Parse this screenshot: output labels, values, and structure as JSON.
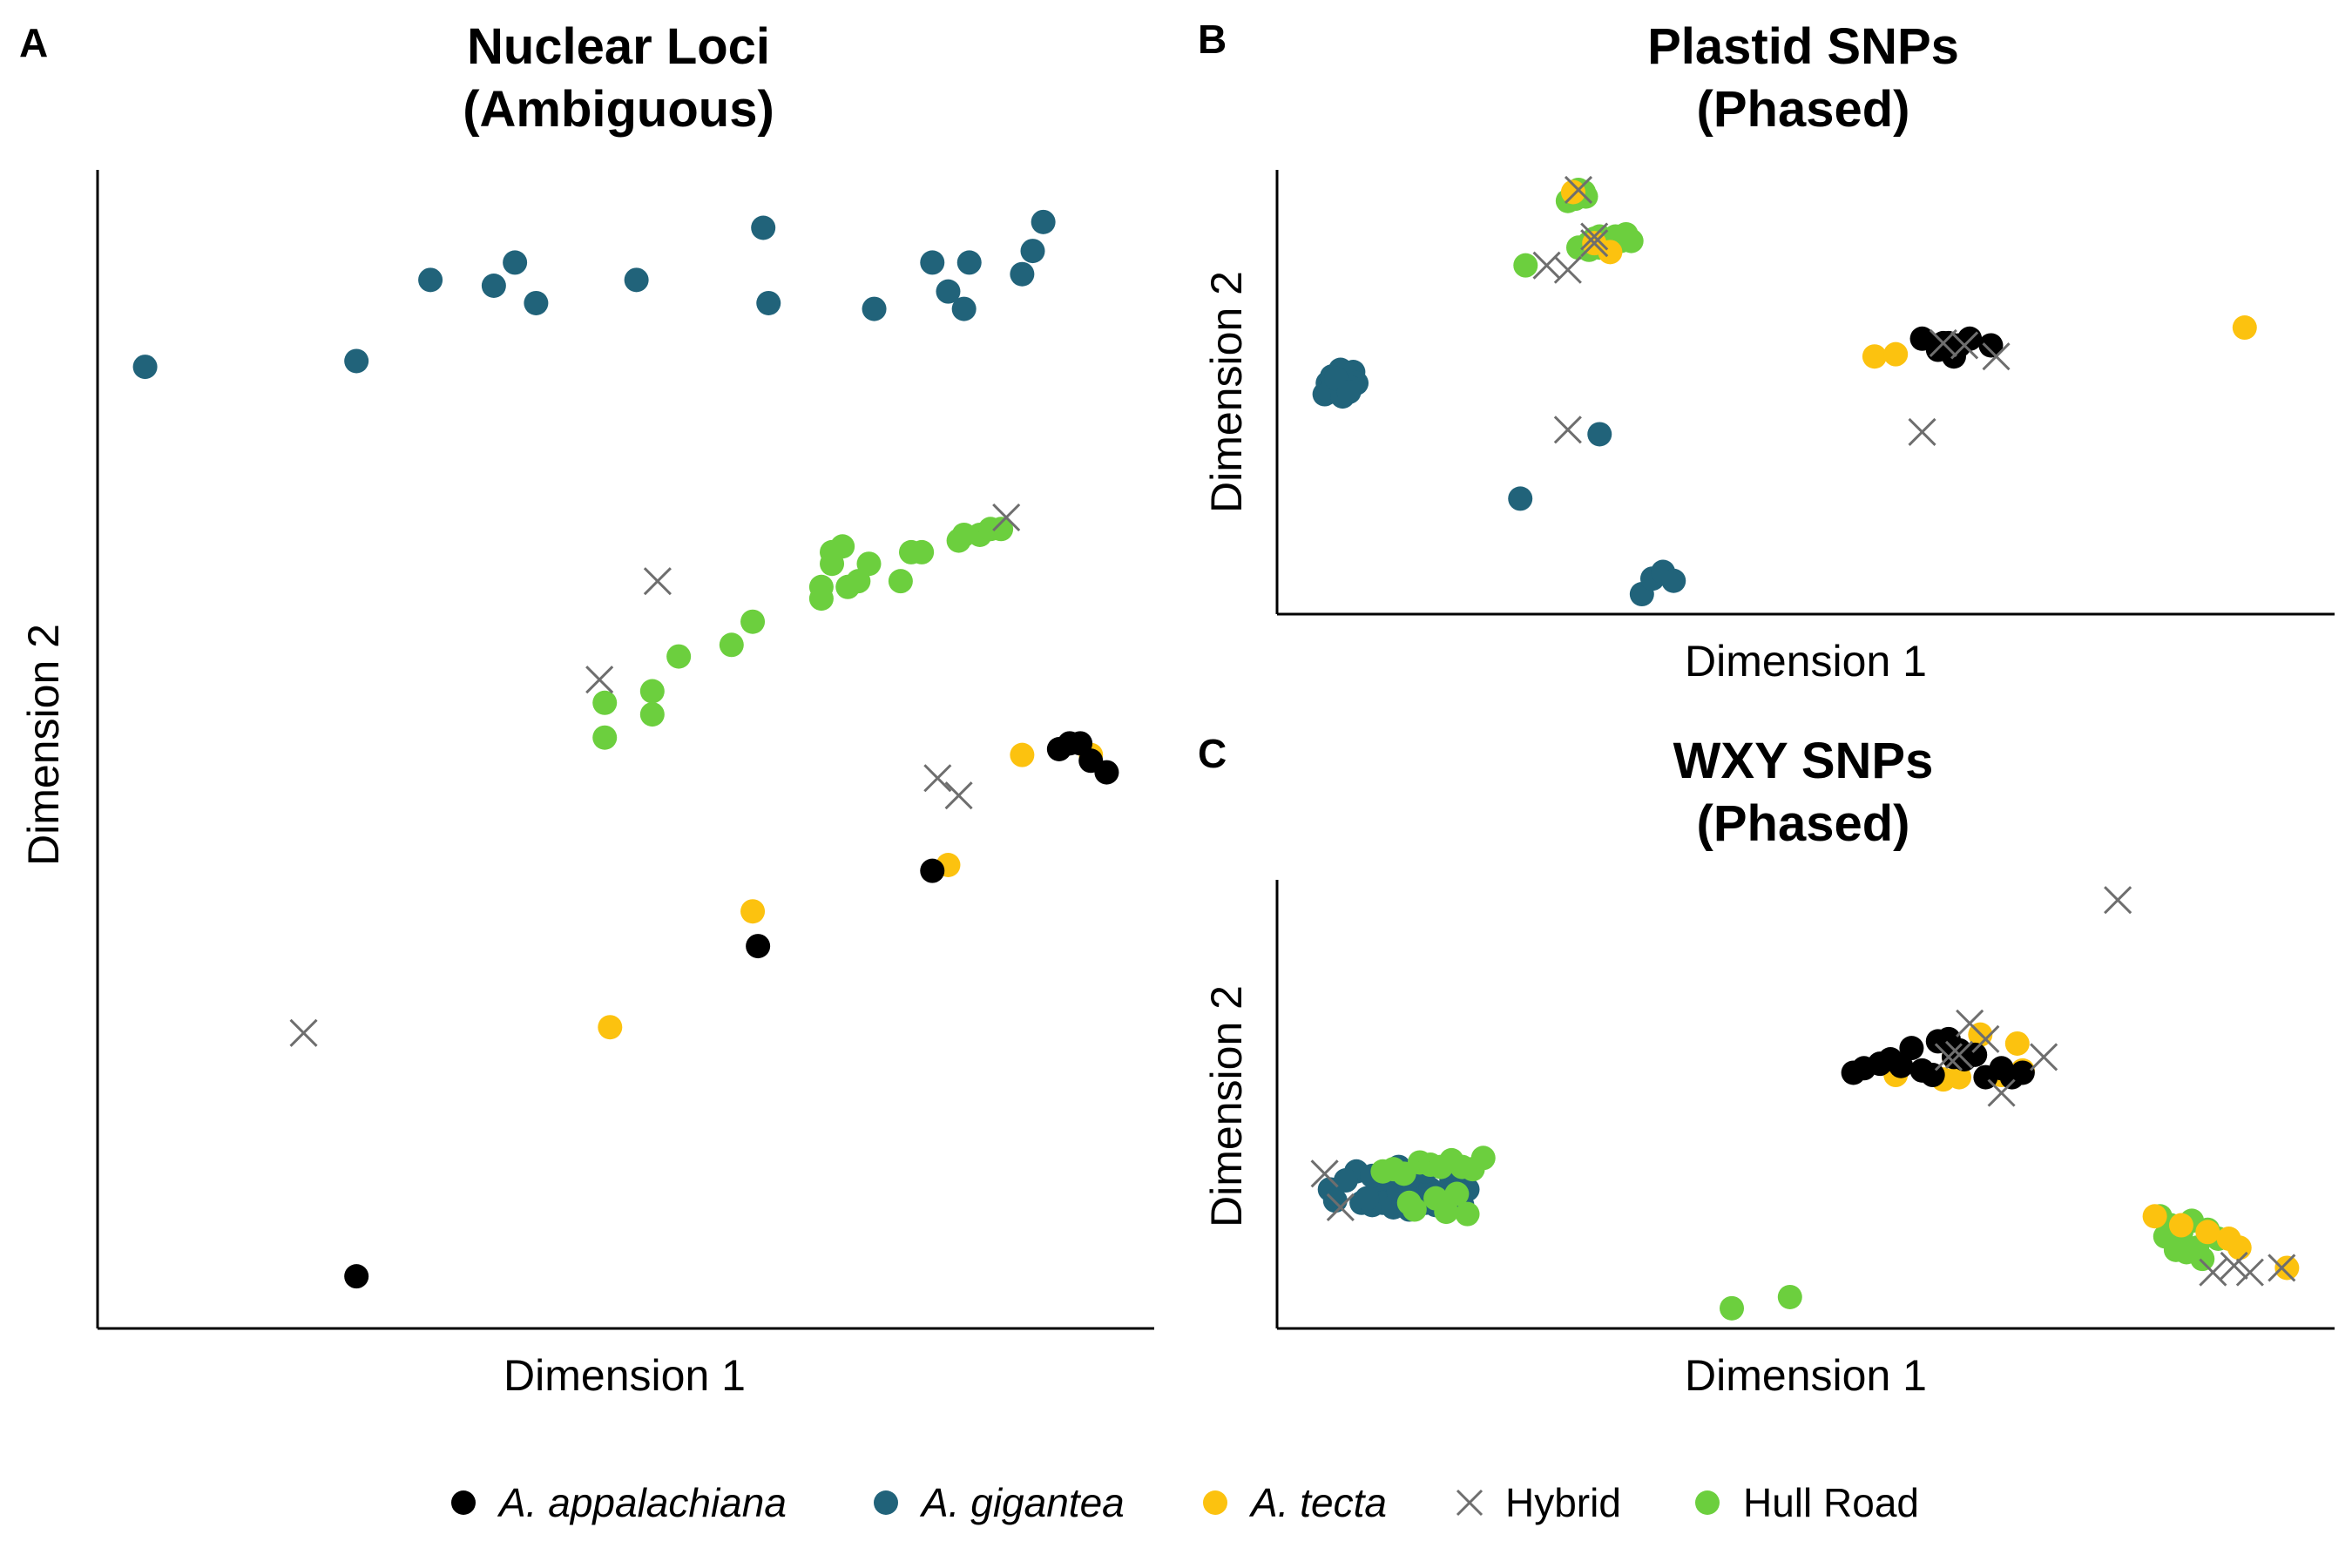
{
  "colors": {
    "A_appalachiana": "#000000",
    "A_gigantea": "#21637a",
    "A_tecta": "#fcc20f",
    "Hybrid": "#6e6e6e",
    "Hull_Road": "#6ccf3e"
  },
  "legend": [
    {
      "key": "A_appalachiana",
      "label": "A. appalachiana",
      "marker": "circle",
      "italic": true
    },
    {
      "key": "A_gigantea",
      "label": "A. gigantea",
      "marker": "circle",
      "italic": true
    },
    {
      "key": "A_tecta",
      "label": "A. tecta",
      "marker": "circle",
      "italic": true
    },
    {
      "key": "Hybrid",
      "label": "Hybrid",
      "marker": "cross",
      "italic": false
    },
    {
      "key": "Hull_Road",
      "label": "Hull Road",
      "marker": "circle",
      "italic": false
    }
  ],
  "chart_data": [
    {
      "panel": "A",
      "type": "scatter",
      "title": "Nuclear Loci\n(Ambiguous)",
      "xlabel": "Dimension 1",
      "ylabel": "Dimension 2",
      "xlim": [
        0,
        100
      ],
      "ylim": [
        0,
        100
      ],
      "grid": false,
      "series": [
        {
          "key": "A_gigantea",
          "x": [
            4.5,
            24.5,
            31.5,
            37.5,
            39.5,
            41.5,
            51,
            63,
            63.5,
            73.5,
            79,
            80.5,
            82,
            82.5,
            87.5,
            88.5,
            89.5
          ],
          "y": [
            83,
            83.5,
            90.5,
            90,
            92,
            88.5,
            90.5,
            95,
            88.5,
            88,
            92,
            89.5,
            88,
            92,
            91,
            93,
            95.5
          ]
        },
        {
          "key": "Hull_Road",
          "x": [
            48,
            48,
            52.5,
            52.5,
            55,
            60,
            62,
            68.5,
            68.5,
            69.5,
            69.5,
            70.5,
            71,
            72,
            73,
            76,
            77,
            78,
            81.5,
            82,
            83.5,
            84.5,
            85.5
          ],
          "y": [
            54,
            51,
            55,
            53,
            58,
            59,
            61,
            64,
            63,
            66,
            67,
            67.5,
            64,
            64.5,
            66,
            64.5,
            67,
            67,
            68,
            68.5,
            68.5,
            69,
            69
          ]
        },
        {
          "key": "A_tecta",
          "x": [
            48.5,
            62,
            80.5,
            87.5,
            94
          ],
          "y": [
            26,
            36,
            40,
            49.5,
            49.5
          ]
        },
        {
          "key": "A_appalachiana",
          "x": [
            24.5,
            62.5,
            79,
            91,
            92,
            93,
            94,
            95.5
          ],
          "y": [
            4.5,
            33,
            39.5,
            50,
            50.5,
            50.5,
            49,
            48
          ]
        },
        {
          "key": "Hybrid",
          "x": [
            19.5,
            47.5,
            53,
            79.5,
            81.5,
            86
          ],
          "y": [
            25.5,
            56,
            64.5,
            47.5,
            46,
            70
          ]
        }
      ]
    },
    {
      "panel": "B",
      "type": "scatter",
      "title": "Plastid SNPs\n(Phased)",
      "xlabel": "Dimension 1",
      "ylabel": "Dimension 2",
      "xlim": [
        0,
        100
      ],
      "ylim": [
        0,
        100
      ],
      "grid": false,
      "series": [
        {
          "key": "A_gigantea",
          "x": [
            4.5,
            4.8,
            5.2,
            5.5,
            5.8,
            6,
            6.3,
            6.6,
            6.9,
            7.2,
            7.5,
            5,
            6.2,
            7,
            5.6,
            6.8,
            23,
            30.5,
            34.5,
            35.5,
            36.5,
            37.5
          ],
          "y": [
            49.5,
            52,
            53.5,
            51,
            54,
            55,
            52.5,
            50.5,
            53,
            54.5,
            52,
            50,
            49,
            51,
            53,
            50,
            26,
            40.5,
            4.5,
            8,
            9.5,
            7.5
          ]
        },
        {
          "key": "Hull_Road",
          "x": [
            23.5,
            27.5,
            28,
            28.5,
            29,
            29.5,
            30,
            30.5,
            31,
            31.5,
            32,
            32.5,
            28.5,
            29.5,
            30.5,
            31.5,
            32.5,
            33,
            33.5,
            28.2,
            29.2
          ],
          "y": [
            78.5,
            93,
            94.5,
            95.5,
            95,
            83.5,
            84.5,
            85,
            84,
            83.5,
            85,
            84.5,
            82.5,
            82,
            82.5,
            83,
            84,
            85.5,
            84,
            93.5,
            94
          ]
        },
        {
          "key": "A_tecta",
          "x": [
            28,
            30,
            31.5,
            56.5,
            58.5,
            91.5
          ],
          "y": [
            95,
            83.5,
            81.5,
            58,
            58.5,
            64.5
          ]
        },
        {
          "key": "A_appalachiana",
          "x": [
            61,
            62.5,
            63.5,
            64.5,
            64,
            65.5,
            63,
            67.5
          ],
          "y": [
            62,
            59.5,
            61,
            60.5,
            58,
            62,
            61,
            60.5
          ]
        },
        {
          "key": "Hybrid",
          "x": [
            25.5,
            27.5,
            27.5,
            28.5,
            30,
            61,
            63,
            65,
            68,
            30
          ],
          "y": [
            78.5,
            77.5,
            41.5,
            95.5,
            83.5,
            41,
            61,
            60.5,
            58,
            85
          ]
        }
      ]
    },
    {
      "panel": "C",
      "type": "scatter",
      "title": "WXY SNPs\n(Phased)",
      "xlabel": "Dimension 1",
      "ylabel": "Dimension 2",
      "xlim": [
        0,
        100
      ],
      "ylim": [
        0,
        100
      ],
      "grid": false,
      "series": [
        {
          "key": "Hull_Road",
          "x": [
            10,
            11,
            12,
            13.5,
            14.5,
            15.5,
            16.5,
            17.5,
            18.5,
            19.5,
            12.5,
            15,
            17,
            13,
            16,
            18,
            43,
            48.5,
            83.5,
            84.5,
            85.5,
            86,
            87,
            88,
            89,
            85,
            87.5,
            84,
            86.5
          ],
          "y": [
            35,
            35.5,
            34.5,
            37,
            36.5,
            36,
            37.5,
            36,
            35.5,
            38,
            28,
            29,
            30,
            26.5,
            26,
            25.5,
            4.5,
            7,
            25,
            23,
            21.5,
            17,
            18,
            22,
            20,
            17.5,
            15.5,
            20.5,
            24
          ]
        },
        {
          "key": "A_gigantea",
          "x": [
            5,
            5.5,
            7.5,
            8,
            9,
            9.5,
            10,
            10.5,
            11,
            11.5,
            12,
            12.5,
            13,
            13.5,
            14,
            14.5,
            15,
            15.5,
            16,
            16.5,
            17,
            17.5,
            18,
            6.5,
            9,
            11.5,
            14,
            16.5,
            8.5,
            12.5
          ],
          "y": [
            31,
            28.5,
            35,
            28,
            27.5,
            30,
            28,
            33.5,
            27,
            30.5,
            28,
            32,
            29.5,
            34,
            28,
            31,
            27.5,
            30,
            28.5,
            33,
            29,
            27.5,
            31,
            33,
            34,
            36,
            35,
            33,
            29,
            26.5
          ]
        },
        {
          "key": "A_tecta",
          "x": [
            58.5,
            63,
            64,
            66.5,
            64.5,
            68.5,
            70,
            70.5,
            83,
            85.5,
            88,
            90,
            91,
            95.5
          ],
          "y": [
            56.5,
            55.5,
            60.5,
            65.5,
            56,
            56.5,
            63.5,
            57.5,
            25,
            23,
            21.5,
            20,
            18,
            13.5
          ]
        },
        {
          "key": "A_appalachiana",
          "x": [
            54.5,
            55.5,
            57,
            58,
            59,
            60,
            61,
            62,
            63.5,
            64.5,
            65,
            66,
            67,
            68.5,
            69.5,
            70.5,
            62.5,
            64
          ],
          "y": [
            57,
            58,
            59,
            60,
            58.5,
            62.5,
            57.5,
            56.5,
            64.5,
            62,
            60,
            61,
            56,
            58,
            56,
            57,
            64,
            60.5
          ]
        },
        {
          "key": "Hybrid",
          "x": [
            4.5,
            6,
            63.5,
            64.5,
            65.5,
            67,
            68.5,
            72.5,
            79.5,
            88.5,
            90.5,
            92,
            95
          ],
          "y": [
            34.5,
            27,
            60.5,
            61,
            68,
            64.5,
            52.5,
            60.5,
            95.5,
            12.5,
            14,
            12.5,
            13.5
          ]
        }
      ]
    }
  ]
}
